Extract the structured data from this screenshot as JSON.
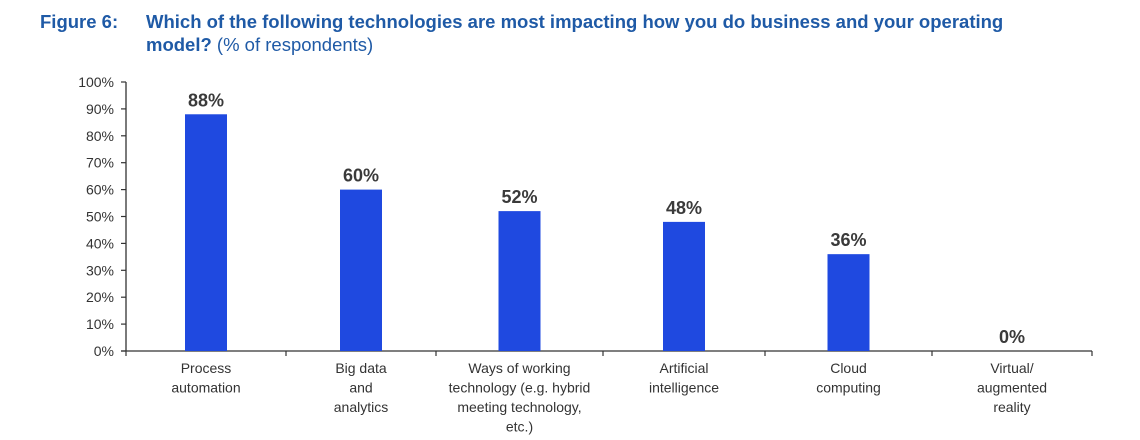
{
  "figure": {
    "number_label": "Figure 6:",
    "question_bold_line1": "Which of the following technologies are most impacting how you do business and your operating",
    "question_bold_line2": "model?",
    "question_suffix": " (% of respondents)"
  },
  "chart_data": {
    "type": "bar",
    "title": "Figure 6: Which of the following technologies are most impacting how you do business and your operating model? (% of respondents)",
    "xlabel": "",
    "ylabel": "",
    "ylim": [
      0,
      100
    ],
    "yticks": [
      0,
      10,
      20,
      30,
      40,
      50,
      60,
      70,
      80,
      90,
      100
    ],
    "ytick_labels": [
      "0%",
      "10%",
      "20%",
      "30%",
      "40%",
      "50%",
      "60%",
      "70%",
      "80%",
      "90%",
      "100%"
    ],
    "grid": false,
    "legend": "none",
    "bar_color": "#1f49e0",
    "categories": [
      [
        "Process",
        "automation"
      ],
      [
        "Big data",
        "and",
        "analytics"
      ],
      [
        "Ways of working",
        "technology (e.g. hybrid",
        "meeting technology,",
        "etc.)"
      ],
      [
        "Artificial",
        "intelligence"
      ],
      [
        "Cloud",
        "computing"
      ],
      [
        "Virtual/",
        "augmented",
        "reality"
      ]
    ],
    "values": [
      88,
      60,
      52,
      48,
      36,
      0
    ],
    "data_labels": [
      "88%",
      "60%",
      "52%",
      "48%",
      "36%",
      "0%"
    ]
  }
}
